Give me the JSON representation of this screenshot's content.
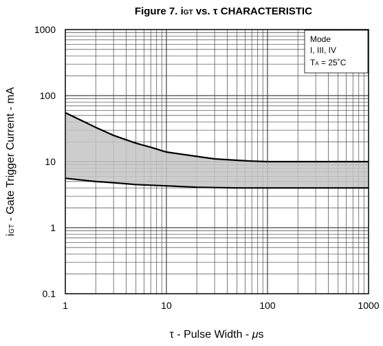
{
  "chart_data": {
    "type": "area",
    "title": {
      "prefix": "Figure 7.  i",
      "sub": "GT",
      "mid": " vs. ",
      "tau": "τ",
      "suffix": " CHARACTERISTIC"
    },
    "xlabel": {
      "tau": "τ",
      "mid": " - Pulse Width - ",
      "mu": "μ",
      "unit": "s"
    },
    "ylabel": {
      "pre": "i",
      "sub": "GT",
      "post": " - Gate Trigger Current - mA"
    },
    "x_scale": "log",
    "y_scale": "log",
    "xlim": [
      1,
      1000
    ],
    "ylim": [
      0.1,
      1000
    ],
    "x_ticks": [
      "1",
      "10",
      "100",
      "1000"
    ],
    "y_ticks": [
      "1000",
      "100",
      "10",
      "1",
      "0.1"
    ],
    "grid": true,
    "legend": {
      "placement": "top-right",
      "line1": "Mode",
      "line2": "I, III, IV",
      "line3_pre": "T",
      "line3_sub": "A",
      "line3_post": " = 25˚C"
    },
    "upper_boundary": {
      "x": [
        1,
        2,
        3,
        5,
        7,
        10,
        20,
        30,
        50,
        70,
        100,
        200,
        300,
        500,
        1000
      ],
      "y": [
        55,
        33,
        25,
        19,
        16.5,
        14,
        12,
        11,
        10.5,
        10.2,
        10,
        10,
        10,
        10,
        10
      ]
    },
    "lower_boundary": {
      "x": [
        1,
        2,
        3,
        5,
        10,
        20,
        50,
        100,
        200,
        500,
        1000
      ],
      "y": [
        5.6,
        5.0,
        4.8,
        4.5,
        4.3,
        4.1,
        4.0,
        4.0,
        4.0,
        4.0,
        4.0
      ]
    },
    "colors": {
      "band_fill": "#c4c4c4",
      "grid": "#444444",
      "boundary": "#000000"
    }
  }
}
